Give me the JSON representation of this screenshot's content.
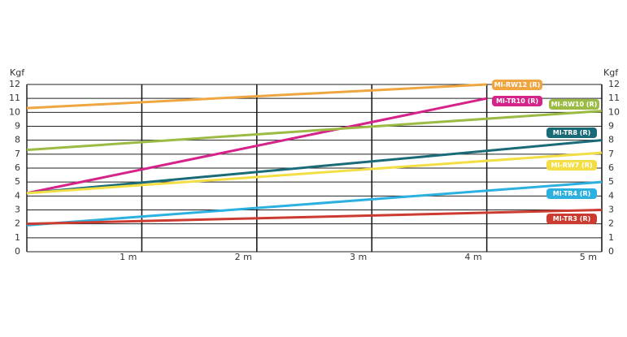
{
  "chart_data": {
    "type": "line",
    "y_label": "Kgf",
    "xlim": [
      0,
      5
    ],
    "ylim": [
      0,
      12
    ],
    "xticks": [
      {
        "value": 1,
        "label": "1 m"
      },
      {
        "value": 2,
        "label": "2 m"
      },
      {
        "value": 3,
        "label": "3 m"
      },
      {
        "value": 4,
        "label": "4 m"
      },
      {
        "value": 5,
        "label": "5 m"
      }
    ],
    "yticks": [
      0,
      1,
      2,
      3,
      4,
      5,
      6,
      7,
      8,
      9,
      10,
      11,
      12
    ],
    "grid": true,
    "series": [
      {
        "name": "MI-RW12 (R)",
        "color": "#f0a640",
        "x": [
          0,
          4
        ],
        "values": [
          10.3,
          12
        ]
      },
      {
        "name": "MI-TR10 (R)",
        "color": "#d6238a",
        "x": [
          0,
          4
        ],
        "values": [
          4.2,
          11
        ]
      },
      {
        "name": "MI-RW10 (R)",
        "color": "#9bbb45",
        "x": [
          0,
          5
        ],
        "values": [
          7.3,
          10.1
        ]
      },
      {
        "name": "MI-TR8 (R)",
        "color": "#1a6b78",
        "x": [
          0,
          5
        ],
        "values": [
          4.2,
          8
        ]
      },
      {
        "name": "MI-RW7 (R)",
        "color": "#f3df45",
        "x": [
          0,
          5
        ],
        "values": [
          4.2,
          7.1
        ]
      },
      {
        "name": "MI-TR4 (R)",
        "color": "#2bb0e0",
        "x": [
          0,
          5
        ],
        "values": [
          1.9,
          5
        ]
      },
      {
        "name": "MI-TR3 (R)",
        "color": "#cc3b30",
        "x": [
          0,
          5
        ],
        "values": [
          2.0,
          3.0
        ]
      }
    ]
  }
}
